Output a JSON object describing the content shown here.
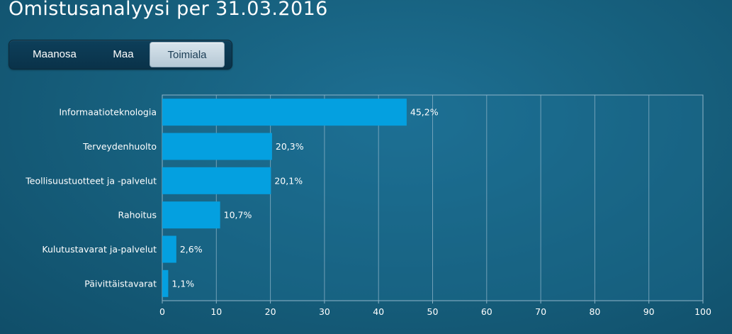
{
  "title": "Omistusanalyysi per 31.03.2016",
  "tabs": [
    {
      "label": "Maanosa",
      "active": false
    },
    {
      "label": "Maa",
      "active": false
    },
    {
      "label": "Toimiala",
      "active": true
    }
  ],
  "colors": {
    "bar": "#04a0e0",
    "grid": "#8fb4c8",
    "plot_background": "#1e7094"
  },
  "chart_data": {
    "type": "bar",
    "orientation": "horizontal",
    "categories": [
      "Informaatioteknologia",
      "Terveydenhuolto",
      "Teollisuustuotteet ja -palvelut",
      "Rahoitus",
      "Kulutustavarat ja-palvelut",
      "Päivittäistavarat"
    ],
    "values": [
      45.2,
      20.3,
      20.1,
      10.7,
      2.6,
      1.1
    ],
    "data_labels": [
      "45,2%",
      "20,3%",
      "20,1%",
      "10,7%",
      "2,6%",
      "1,1%"
    ],
    "xlim": [
      0,
      100
    ],
    "xticks": [
      0,
      10,
      20,
      30,
      40,
      50,
      60,
      70,
      80,
      90,
      100
    ],
    "grid": true
  }
}
